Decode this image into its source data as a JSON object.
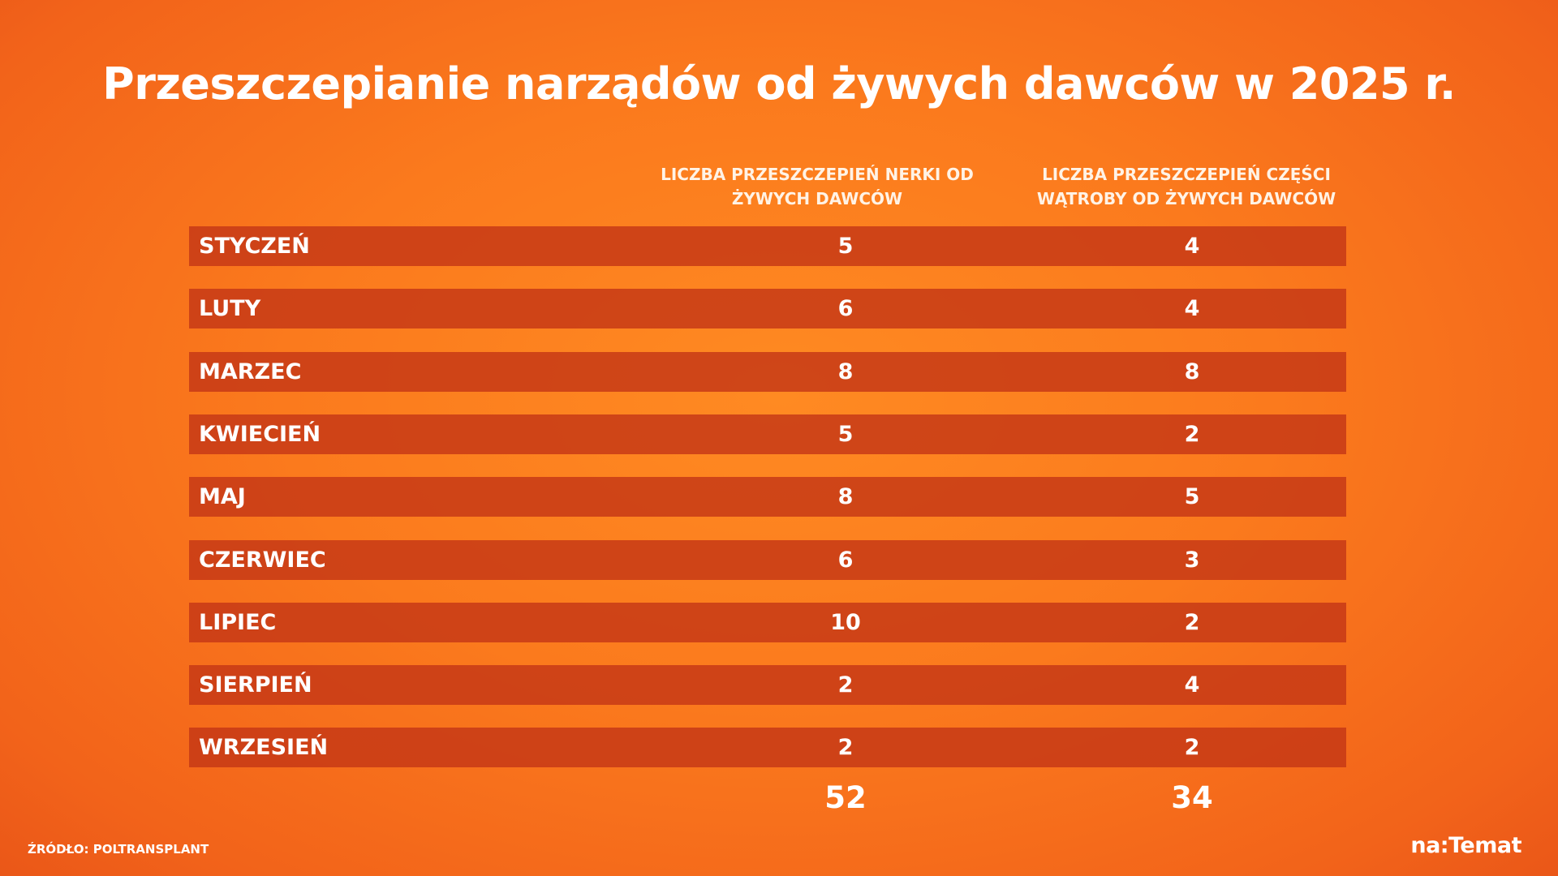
{
  "title": "Przeszczepianie narządów od żywych dawców w 2025 r.",
  "table": {
    "headers": [
      "LICZBA PRZESZCZEPIEŃ NERKI OD ŻYWYCH DAWCÓW",
      "LICZBA PRZESZCZEPIEŃ CZĘŚCI WĄTROBY OD ŻYWYCH DAWCÓW"
    ],
    "rows": [
      [
        "STYCZEŃ",
        5,
        4
      ],
      [
        "LUTY",
        6,
        4
      ],
      [
        "MARZEC",
        8,
        8
      ],
      [
        "KWIECIEŃ",
        5,
        2
      ],
      [
        "MAJ",
        8,
        5
      ],
      [
        "CZERWIEC",
        6,
        3
      ],
      [
        "LIPIEC",
        10,
        2
      ],
      [
        "SIERPIEŃ",
        2,
        4
      ],
      [
        "WRZESIEŃ",
        2,
        2
      ]
    ],
    "totals": [
      52,
      34
    ]
  },
  "source": "ŹRÓDŁO: POLTRANSPLANT",
  "logo": "na:Temat"
}
